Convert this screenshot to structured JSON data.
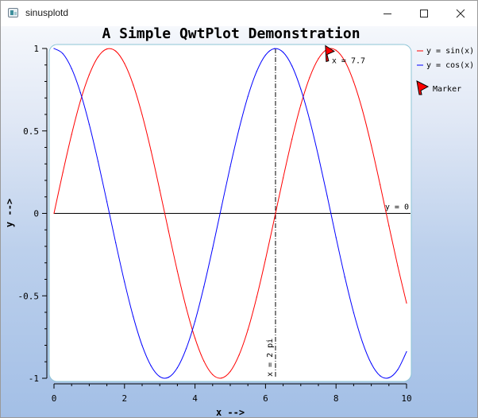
{
  "window": {
    "title": "sinusplotd",
    "controls": {
      "minimize_icon": "minimize-icon",
      "maximize_icon": "maximize-icon",
      "close_icon": "close-icon"
    }
  },
  "chart_data": {
    "type": "line",
    "title": "A Simple QwtPlot Demonstration",
    "xlabel": "x -->",
    "ylabel": "y -->",
    "xlim": [
      0,
      10
    ],
    "ylim": [
      -1,
      1
    ],
    "xticks": [
      0,
      2,
      4,
      6,
      8,
      10
    ],
    "xtick_labels": [
      "0",
      "2",
      "4",
      "6",
      "8",
      "10"
    ],
    "yticks": [
      1,
      0.5,
      0,
      -0.5,
      -1
    ],
    "ytick_labels": [
      "1",
      "0.5",
      "0",
      "-0.5",
      "-1"
    ],
    "grid": false,
    "legend_position": "right",
    "series": [
      {
        "name": "y = sin(x)",
        "color": "#ff0000",
        "x": [
          0,
          0.25,
          0.5,
          0.75,
          1,
          1.25,
          1.5,
          1.75,
          2,
          2.25,
          2.5,
          2.75,
          3,
          3.25,
          3.5,
          3.75,
          4,
          4.25,
          4.5,
          4.75,
          5,
          5.25,
          5.5,
          5.75,
          6,
          6.25,
          6.5,
          6.75,
          7,
          7.25,
          7.5,
          7.75,
          8,
          8.25,
          8.5,
          8.75,
          9,
          9.25,
          9.5,
          9.75,
          10
        ],
        "y": [
          0,
          0.247,
          0.479,
          0.682,
          0.841,
          0.949,
          0.997,
          0.984,
          0.909,
          0.778,
          0.598,
          0.382,
          0.141,
          -0.108,
          -0.351,
          -0.572,
          -0.757,
          -0.895,
          -0.978,
          -0.999,
          -0.959,
          -0.859,
          -0.706,
          -0.508,
          -0.279,
          -0.033,
          0.215,
          0.45,
          0.657,
          0.823,
          0.938,
          0.995,
          0.989,
          0.923,
          0.798,
          0.625,
          0.412,
          0.174,
          -0.075,
          -0.319,
          -0.544
        ]
      },
      {
        "name": "y = cos(x)",
        "color": "#0000ff",
        "x": [
          0,
          0.25,
          0.5,
          0.75,
          1,
          1.25,
          1.5,
          1.75,
          2,
          2.25,
          2.5,
          2.75,
          3,
          3.25,
          3.5,
          3.75,
          4,
          4.25,
          4.5,
          4.75,
          5,
          5.25,
          5.5,
          5.75,
          6,
          6.25,
          6.5,
          6.75,
          7,
          7.25,
          7.5,
          7.75,
          8,
          8.25,
          8.5,
          8.75,
          9,
          9.25,
          9.5,
          9.75,
          10
        ],
        "y": [
          1,
          0.969,
          0.878,
          0.732,
          0.54,
          0.315,
          0.071,
          -0.178,
          -0.416,
          -0.628,
          -0.801,
          -0.924,
          -0.99,
          -0.994,
          -0.936,
          -0.82,
          -0.654,
          -0.446,
          -0.211,
          0.038,
          0.284,
          0.512,
          0.709,
          0.861,
          0.96,
          0.999,
          0.977,
          0.894,
          0.754,
          0.568,
          0.347,
          0.105,
          -0.146,
          -0.386,
          -0.602,
          -0.781,
          -0.911,
          -0.985,
          -0.997,
          -0.948,
          -0.839
        ]
      }
    ],
    "markers": [
      {
        "type": "hline",
        "y": 0,
        "label": "y = 0",
        "color": "#000000"
      },
      {
        "type": "vline",
        "x": 6.2832,
        "label": "x = 2 pi",
        "color": "#000000"
      },
      {
        "type": "symbol",
        "x": 7.7,
        "y": 0.988,
        "label": "x = 7.7",
        "color": "#ff0000"
      }
    ],
    "legend": [
      {
        "label": "y = sin(x)",
        "color": "#ff0000",
        "kind": "line"
      },
      {
        "label": "y = cos(x)",
        "color": "#0000ff",
        "kind": "line"
      },
      {
        "label": "Marker",
        "color": "#ff0000",
        "kind": "flag"
      }
    ]
  }
}
